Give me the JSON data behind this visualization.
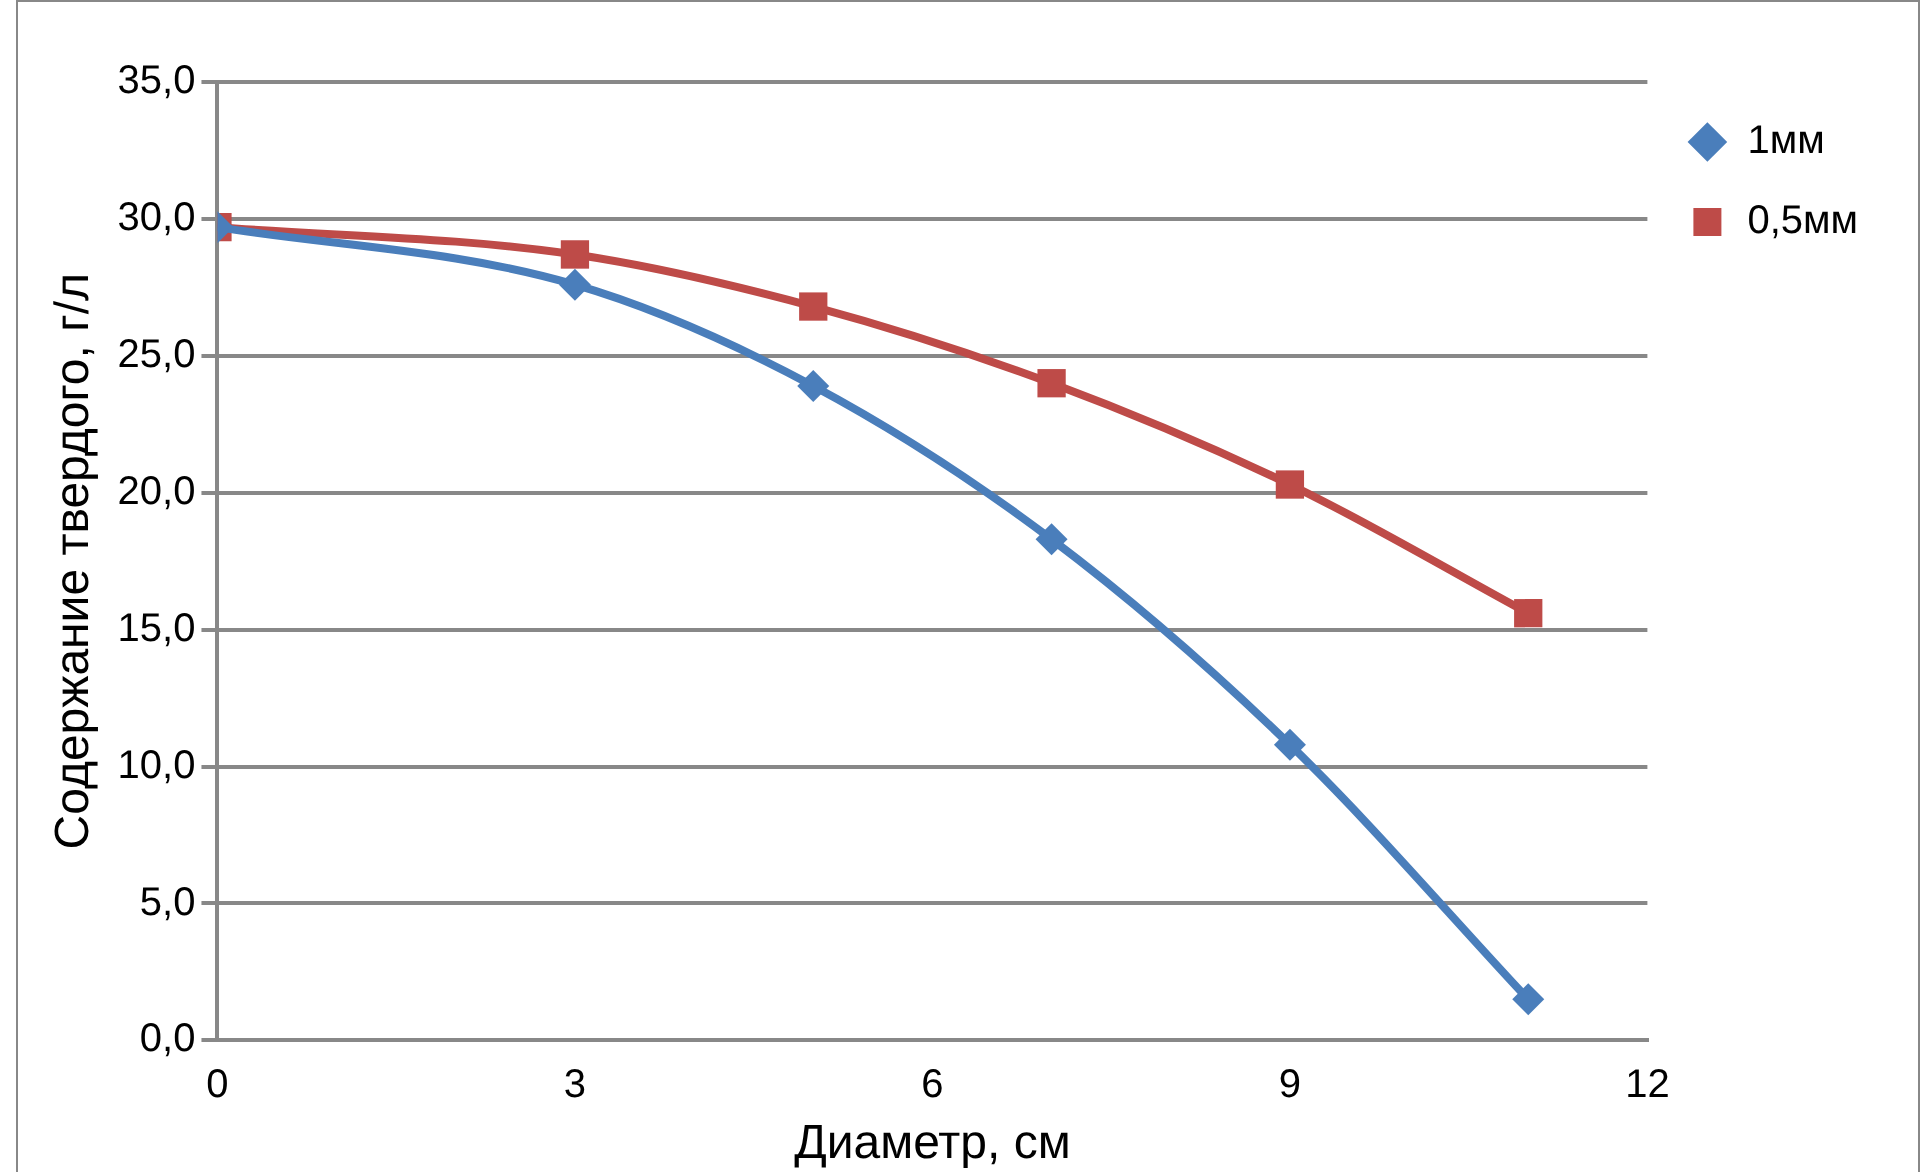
{
  "chart_data": {
    "type": "line",
    "xlabel": "Диаметр, см",
    "ylabel": "Содержание твердого, г/л",
    "x": [
      0,
      3,
      5,
      7,
      9,
      11
    ],
    "series": [
      {
        "name": "1мм",
        "color": "#4a7ebb",
        "marker": "diamond",
        "values": [
          29.7,
          27.6,
          23.9,
          18.3,
          10.8,
          1.5
        ]
      },
      {
        "name": "0,5мм",
        "color": "#be4b48",
        "marker": "square",
        "values": [
          29.7,
          28.7,
          26.8,
          24.0,
          20.3,
          15.6
        ]
      }
    ],
    "xlim": [
      0,
      12
    ],
    "xticks": [
      0,
      3,
      6,
      9,
      12
    ],
    "ylim": [
      0,
      35
    ],
    "yticks": [
      {
        "value": 0,
        "label": "0,0"
      },
      {
        "value": 5,
        "label": "5,0"
      },
      {
        "value": 10,
        "label": "10,0"
      },
      {
        "value": 15,
        "label": "15,0"
      },
      {
        "value": 20,
        "label": "20,0"
      },
      {
        "value": 25,
        "label": "25,0"
      },
      {
        "value": 30,
        "label": "30,0"
      },
      {
        "value": 35,
        "label": "35,0"
      }
    ],
    "grid": "y",
    "legend": "top right",
    "line_style": "solid"
  }
}
